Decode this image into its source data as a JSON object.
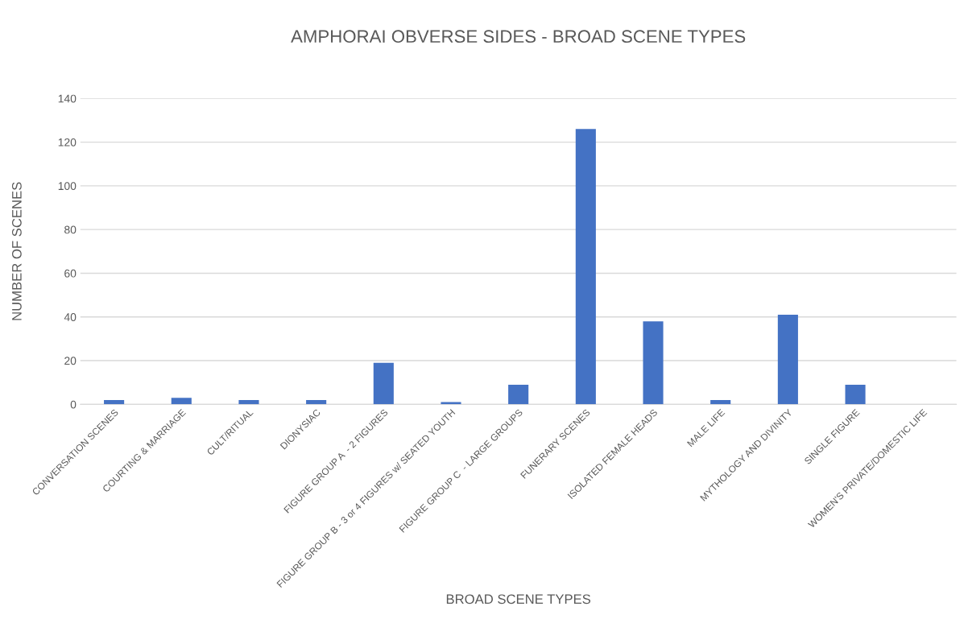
{
  "chart_data": {
    "type": "bar",
    "title": "AMPHORAI OBVERSE SIDES - BROAD SCENE TYPES",
    "xlabel": "BROAD SCENE TYPES",
    "ylabel": "NUMBER OF SCENES",
    "categories": [
      "CONVERSATION SCENES",
      "COURTING & MARRIAGE",
      "CULT/RITUAL",
      "DIONYSIAC",
      "FIGURE GROUP A  - 2 FIGURES",
      "FIGURE GROUP B - 3 or 4 FIGURES w/ SEATED YOUTH",
      "FIGURE GROUP C  - LARGE GROUPS",
      "FUNERARY SCENES",
      "ISOLATED FEMALE HEADS",
      "MALE LIFE",
      "MYTHOLOGY AND DIVINITY",
      "SINGLE FIGURE",
      "WOMEN'S PRIVATE/DOMESTIC LIFE"
    ],
    "values": [
      2,
      3,
      2,
      2,
      19,
      1,
      9,
      126,
      38,
      2,
      41,
      9,
      0
    ],
    "color": "#4472c4",
    "ylim": [
      0,
      140
    ],
    "yticks": [
      0,
      20,
      40,
      60,
      80,
      100,
      120,
      140
    ],
    "grid": "y"
  }
}
